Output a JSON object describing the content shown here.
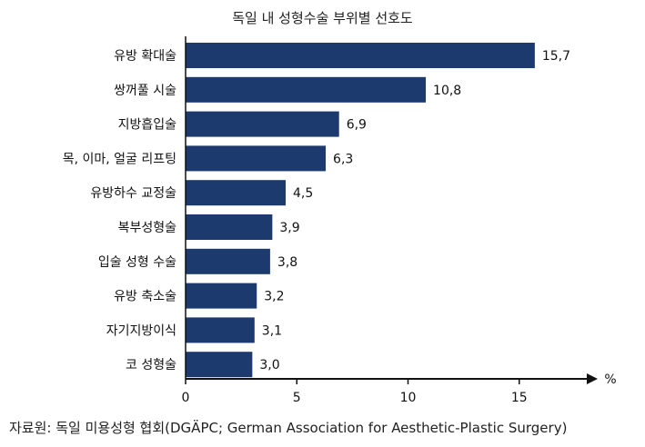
{
  "chart_data": {
    "type": "bar",
    "orientation": "horizontal",
    "title": "독일 내 성형수술 부위별 선호도",
    "categories": [
      "유방 확대술",
      "쌍꺼풀 시술",
      "지방흡입술",
      "목, 이마, 얼굴 리프팅",
      "유방하수 교정술",
      "복부성형술",
      "입술 성형 수술",
      "유방 축소술",
      "자기지방이식",
      "코 성형술"
    ],
    "values": [
      15.7,
      10.8,
      6.9,
      6.3,
      4.5,
      3.9,
      3.8,
      3.2,
      3.1,
      3.0
    ],
    "value_labels": [
      "15,7",
      "10,8",
      "6,9",
      "6,3",
      "4,5",
      "3,9",
      "3,8",
      "3,2",
      "3,1",
      "3,0"
    ],
    "xticks": [
      0,
      5,
      10,
      15
    ],
    "xtick_labels": [
      "0",
      "5",
      "10",
      "15"
    ],
    "xlim": [
      0,
      18.5
    ],
    "xunit": "%",
    "grid": false,
    "bar_color": "#1c3a6e",
    "source": "자료원: 독일 미용성형 협회(DGÄPC; German Association for Aesthetic-Plastic Surgery)"
  }
}
